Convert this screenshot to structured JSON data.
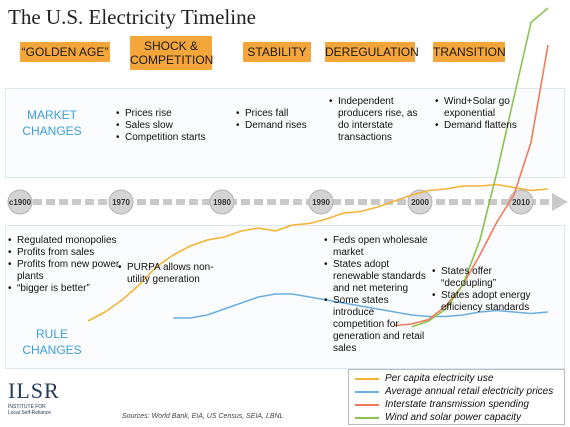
{
  "title": "The U.S. Electricity Timeline",
  "eras": [
    {
      "label": "“GOLDEN AGE”"
    },
    {
      "label": "SHOCK & COMPETITION"
    },
    {
      "label": "STABILITY"
    },
    {
      "label": "DEREGULATION"
    },
    {
      "label": "TRANSITION"
    }
  ],
  "market_label": "MARKET CHANGES",
  "rule_label": "RULE CHANGES",
  "market_changes": {
    "shock": [
      "Prices rise",
      "Sales slow",
      "Competition starts"
    ],
    "stability": [
      "Prices fall",
      "Demand rises"
    ],
    "deregulation": [
      "Independent producers rise, as do interstate transactions"
    ],
    "transition": [
      "Wind+Solar go exponential",
      "Demand flattens"
    ]
  },
  "rule_changes": {
    "golden": [
      "Regulated monopolies",
      "Profits from sales",
      "Profits from new power plants",
      "“bigger is better”"
    ],
    "shock": [
      "PURPA allows non-utility generation"
    ],
    "deregulation": [
      "Feds open wholesale market",
      "States adopt renewable standards and net metering",
      "Some states introduce competition for generation and retail sales"
    ],
    "transition": [
      "States offer “decoupling”",
      "States adopt energy efficiency standards"
    ]
  },
  "timeline_ticks": [
    "c1900",
    "1970",
    "1980",
    "1990",
    "2000",
    "2010"
  ],
  "legend": [
    {
      "label": "Per capita electricity use",
      "color": "#f5b335"
    },
    {
      "label": "Average annual retail electricity prices",
      "color": "#6aaee0"
    },
    {
      "label": "Interstate transmission spending",
      "color": "#f07b5c"
    },
    {
      "label": "Wind and solar power capacity",
      "color": "#8cc152"
    }
  ],
  "logo": {
    "text": "ILSR",
    "subtitle": "INSTITUTE FOR Local Self-Reliance"
  },
  "sources": "Sources: World Bank, EIA, US Census, SEIA, LBNL",
  "chart_data": {
    "type": "line",
    "x": [
      1960,
      1962,
      1964,
      1966,
      1968,
      1970,
      1972,
      1974,
      1976,
      1978,
      1980,
      1982,
      1984,
      1986,
      1988,
      1990,
      1992,
      1994,
      1996,
      1998,
      2000,
      2002,
      2004,
      2006,
      2008,
      2010,
      2012,
      2014
    ],
    "series": [
      {
        "name": "Per capita electricity use",
        "color": "#f5b335",
        "values": [
          0.06,
          0.12,
          0.2,
          0.3,
          0.42,
          0.5,
          0.56,
          0.6,
          0.62,
          0.66,
          0.68,
          0.66,
          0.7,
          0.71,
          0.74,
          0.78,
          0.79,
          0.82,
          0.86,
          0.9,
          0.93,
          0.94,
          0.96,
          0.96,
          0.97,
          0.95,
          0.93,
          0.94
        ]
      },
      {
        "name": "Average annual retail electricity prices",
        "color": "#6aaee0",
        "values": [
          null,
          null,
          null,
          null,
          null,
          0.08,
          0.08,
          0.1,
          0.14,
          0.18,
          0.22,
          0.24,
          0.24,
          0.22,
          0.2,
          0.18,
          0.16,
          0.14,
          0.12,
          0.1,
          0.09,
          0.09,
          0.1,
          0.12,
          0.13,
          0.12,
          0.11,
          0.12
        ]
      },
      {
        "name": "Interstate transmission spending",
        "color": "#f07b5c",
        "values": [
          null,
          null,
          null,
          null,
          null,
          null,
          null,
          null,
          null,
          null,
          null,
          null,
          null,
          null,
          null,
          null,
          null,
          null,
          0.03,
          0.04,
          0.07,
          0.16,
          0.3,
          0.5,
          0.72,
          0.9,
          1.25,
          1.9
        ]
      },
      {
        "name": "Wind and solar power capacity",
        "color": "#8cc152",
        "values": [
          null,
          null,
          null,
          null,
          null,
          null,
          null,
          null,
          null,
          null,
          null,
          null,
          null,
          null,
          null,
          null,
          null,
          null,
          null,
          0.02,
          0.06,
          0.14,
          0.3,
          0.6,
          1.05,
          1.55,
          2.05,
          2.6
        ]
      }
    ],
    "xlabel": "",
    "ylabel": "",
    "grid": false,
    "legend_position": "bottom-right"
  }
}
